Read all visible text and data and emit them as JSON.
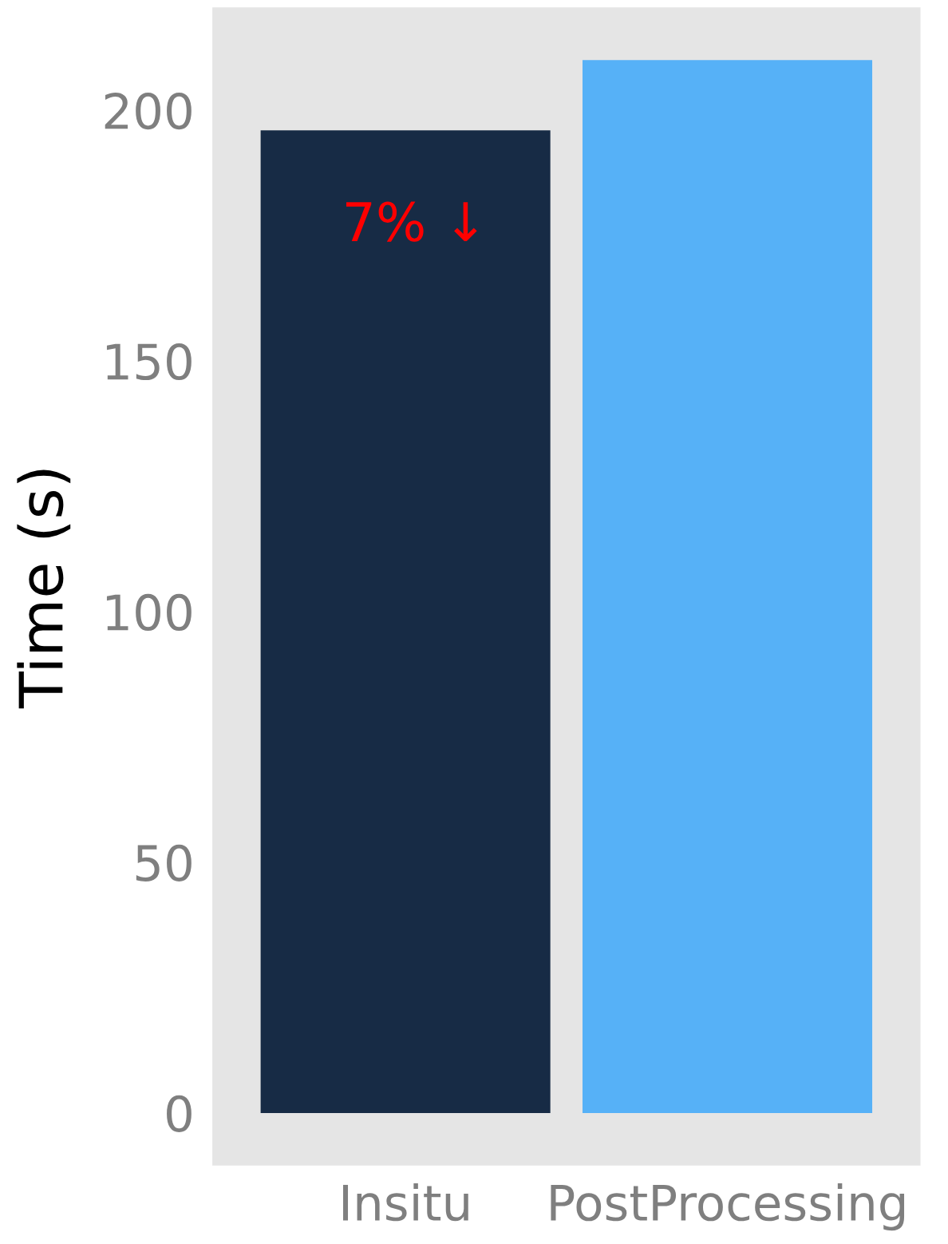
{
  "chart_data": {
    "type": "bar",
    "ylabel": "Time (s)",
    "categories": [
      "Insitu",
      "PostProcessing"
    ],
    "values": [
      196,
      210
    ],
    "colors": [
      "#172b45",
      "#56b1f7"
    ],
    "ylim": [
      -10.5,
      220.5
    ],
    "yticks": [
      0,
      50,
      100,
      150,
      200
    ],
    "grid": false,
    "annotations": [
      "7% ↓"
    ]
  }
}
